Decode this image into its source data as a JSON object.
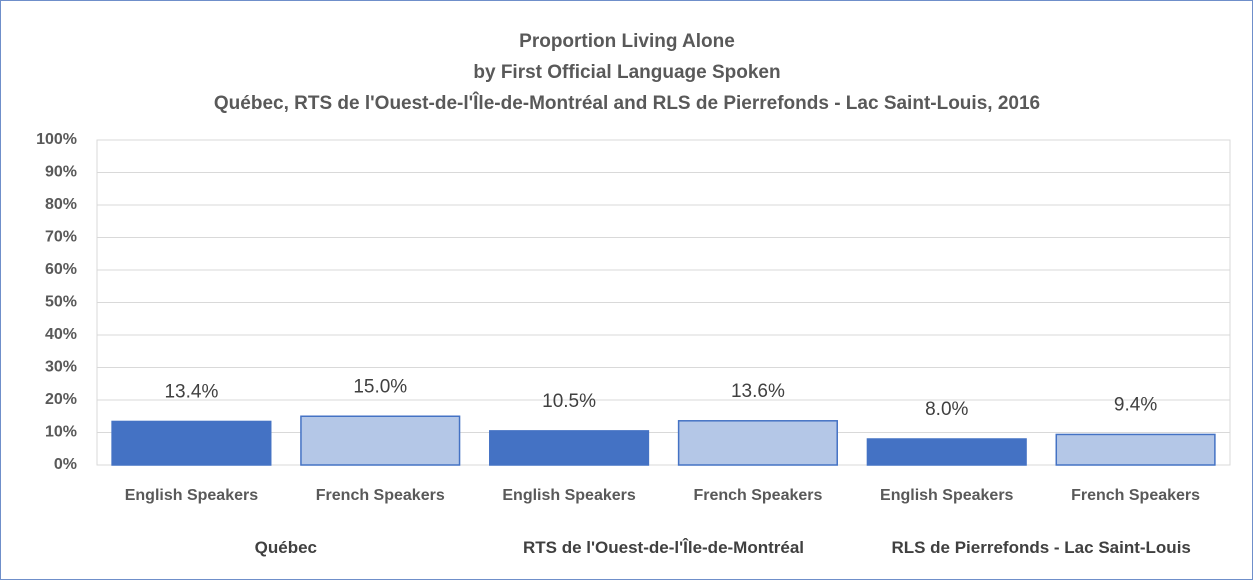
{
  "chart_data": {
    "type": "bar",
    "title_lines": [
      "Proportion Living Alone",
      "by First Official Language Spoken",
      "Québec, RTS de l'Ouest-de-l'Île-de-Montréal and RLS de Pierrefonds - Lac Saint-Louis, 2016"
    ],
    "categories": [
      "English Speakers",
      "French Speakers",
      "English Speakers",
      "French Speakers",
      "English Speakers",
      "French Speakers"
    ],
    "groups": [
      "Québec",
      "RTS de l'Ouest-de-l'Île-de-Montréal",
      "RLS de Pierrefonds - Lac Saint-Louis"
    ],
    "values": [
      13.4,
      15.0,
      10.5,
      13.6,
      8.0,
      9.4
    ],
    "value_labels": [
      "13.4%",
      "15.0%",
      "10.5%",
      "13.6%",
      "8.0%",
      "9.4%"
    ],
    "colors": [
      "#4472c4",
      "#b4c7e7",
      "#4472c4",
      "#b4c7e7",
      "#4472c4",
      "#b4c7e7"
    ],
    "edge_color": "#4472c4",
    "ylim": [
      0,
      100
    ],
    "yticks": [
      {
        "value": 0,
        "label": "0%"
      },
      {
        "value": 10,
        "label": "10%"
      },
      {
        "value": 20,
        "label": "20%"
      },
      {
        "value": 30,
        "label": "30%"
      },
      {
        "value": 40,
        "label": "40%"
      },
      {
        "value": 50,
        "label": "50%"
      },
      {
        "value": 60,
        "label": "60%"
      },
      {
        "value": 70,
        "label": "70%"
      },
      {
        "value": 80,
        "label": "80%"
      },
      {
        "value": 90,
        "label": "90%"
      },
      {
        "value": 100,
        "label": "100%"
      }
    ],
    "grid": true
  }
}
